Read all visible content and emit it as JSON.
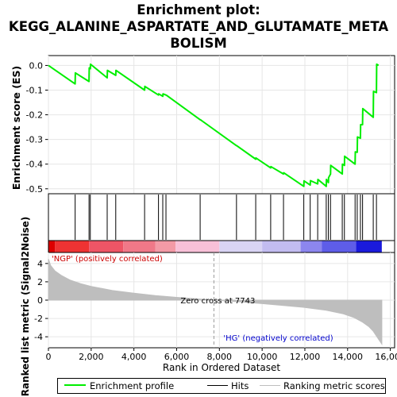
{
  "title": {
    "line1": "Enrichment plot:",
    "line2": "KEGG_ALANINE_ASPARTATE_AND_GLUTAMATE_META",
    "line3": "BOLISM"
  },
  "colors": {
    "enrichment_line": "#00ee00",
    "hits": "#000000",
    "metric_fill": "#bebebe",
    "positive_label": "#cc0000",
    "negative_label": "#0000cc",
    "zero_cross_line": "#999999"
  },
  "chart_data": [
    {
      "type": "line",
      "panel": "enrichment",
      "ylabel": "Enrichment score (ES)",
      "xlim": [
        0,
        16200
      ],
      "ylim": [
        -0.52,
        0.04
      ],
      "yticks": [
        0.0,
        -0.1,
        -0.2,
        -0.3,
        -0.4,
        -0.5
      ],
      "ytick_labels": [
        "0.0",
        "-0.1",
        "-0.2",
        "-0.3",
        "-0.4",
        "-0.5"
      ],
      "grid": true,
      "series": [
        {
          "name": "Enrichment profile",
          "x": [
            0,
            1250,
            1260,
            1900,
            1910,
            1960,
            1970,
            2750,
            2760,
            3150,
            3160,
            4500,
            4510,
            5150,
            5160,
            5350,
            5360,
            5500,
            5510,
            7100,
            7110,
            8800,
            8810,
            9700,
            9710,
            10400,
            10410,
            11000,
            11010,
            11950,
            11960,
            12250,
            12260,
            12600,
            12610,
            13000,
            13010,
            13100,
            13110,
            13200,
            13210,
            13750,
            13760,
            13850,
            13860,
            14350,
            14360,
            14450,
            14460,
            14600,
            14610,
            14700,
            14710,
            15200,
            15210,
            15350,
            15360,
            15450
          ],
          "y": [
            0.0,
            -0.075,
            -0.03,
            -0.065,
            -0.01,
            -0.013,
            0.005,
            -0.05,
            -0.02,
            -0.04,
            -0.02,
            -0.1,
            -0.085,
            -0.12,
            -0.115,
            -0.125,
            -0.115,
            -0.12,
            -0.12,
            -0.22,
            -0.22,
            -0.325,
            -0.325,
            -0.38,
            -0.375,
            -0.415,
            -0.41,
            -0.44,
            -0.435,
            -0.49,
            -0.468,
            -0.485,
            -0.467,
            -0.48,
            -0.462,
            -0.49,
            -0.462,
            -0.475,
            -0.455,
            -0.44,
            -0.405,
            -0.44,
            -0.4,
            -0.405,
            -0.368,
            -0.4,
            -0.35,
            -0.352,
            -0.29,
            -0.295,
            -0.24,
            -0.24,
            -0.175,
            -0.21,
            -0.105,
            -0.11,
            0.005,
            0.0
          ]
        }
      ]
    },
    {
      "type": "table",
      "panel": "hits",
      "name": "Hits",
      "hit_positions": [
        1250,
        1900,
        1960,
        2750,
        3150,
        4500,
        5150,
        5350,
        5500,
        7100,
        8800,
        9700,
        10400,
        11000,
        11950,
        12250,
        12600,
        13000,
        13100,
        13200,
        13750,
        13850,
        14350,
        14450,
        14600,
        14700,
        15200,
        15350
      ]
    },
    {
      "type": "heatmap",
      "panel": "ranked-list-colorbar",
      "segments": [
        {
          "from": 0,
          "to": 300,
          "color": "#dd0000"
        },
        {
          "from": 300,
          "to": 1900,
          "color": "#ee3333"
        },
        {
          "from": 1900,
          "to": 3500,
          "color": "#ee5566"
        },
        {
          "from": 3500,
          "to": 5000,
          "color": "#f07888"
        },
        {
          "from": 5000,
          "to": 5950,
          "color": "#f39aa6"
        },
        {
          "from": 5950,
          "to": 8000,
          "color": "#f8c0d8"
        },
        {
          "from": 8000,
          "to": 10000,
          "color": "#d9d4f4"
        },
        {
          "from": 10000,
          "to": 11800,
          "color": "#c2bcf0"
        },
        {
          "from": 11800,
          "to": 12800,
          "color": "#8c86ee"
        },
        {
          "from": 12800,
          "to": 14400,
          "color": "#5e5de8"
        },
        {
          "from": 14400,
          "to": 15600,
          "color": "#1a1adc"
        }
      ]
    },
    {
      "type": "area",
      "panel": "ranked-metric",
      "ylabel": "Ranked list metric (Signal2Noise)",
      "xlabel": "Rank in Ordered Dataset",
      "xlim": [
        0,
        16200
      ],
      "ylim": [
        -5.2,
        5.2
      ],
      "xticks": [
        0,
        2000,
        4000,
        6000,
        8000,
        10000,
        12000,
        14000,
        16000
      ],
      "xtick_labels": [
        "0",
        "2,000",
        "4,000",
        "6,000",
        "8,000",
        "10,000",
        "12,000",
        "14,000",
        "16,000"
      ],
      "yticks": [
        4,
        2,
        0,
        -2,
        -4
      ],
      "ytick_labels": [
        "4",
        "2",
        "0",
        "-2",
        "-4"
      ],
      "grid": true,
      "series": [
        {
          "name": "Ranking metric scores",
          "x": [
            0,
            100,
            300,
            600,
            1000,
            1500,
            2000,
            3000,
            4000,
            5000,
            6000,
            7000,
            7743,
            9000,
            10000,
            11000,
            12000,
            13000,
            13800,
            14300,
            14700,
            15000,
            15200,
            15400,
            15600
          ],
          "y": [
            4.5,
            3.8,
            3.2,
            2.7,
            2.2,
            1.8,
            1.5,
            1.05,
            0.75,
            0.5,
            0.3,
            0.13,
            0.0,
            -0.2,
            -0.38,
            -0.58,
            -0.8,
            -1.1,
            -1.5,
            -1.9,
            -2.4,
            -2.9,
            -3.4,
            -4.1,
            -4.8
          ]
        }
      ],
      "annotations": {
        "zero_cross": "Zero cross at 7743",
        "zero_cross_x": 7743,
        "positive": "'NGP' (positively correlated)",
        "negative": "'HG' (negatively correlated)"
      }
    }
  ],
  "legend": {
    "items": [
      "Enrichment profile",
      "Hits",
      "Ranking metric scores"
    ]
  }
}
